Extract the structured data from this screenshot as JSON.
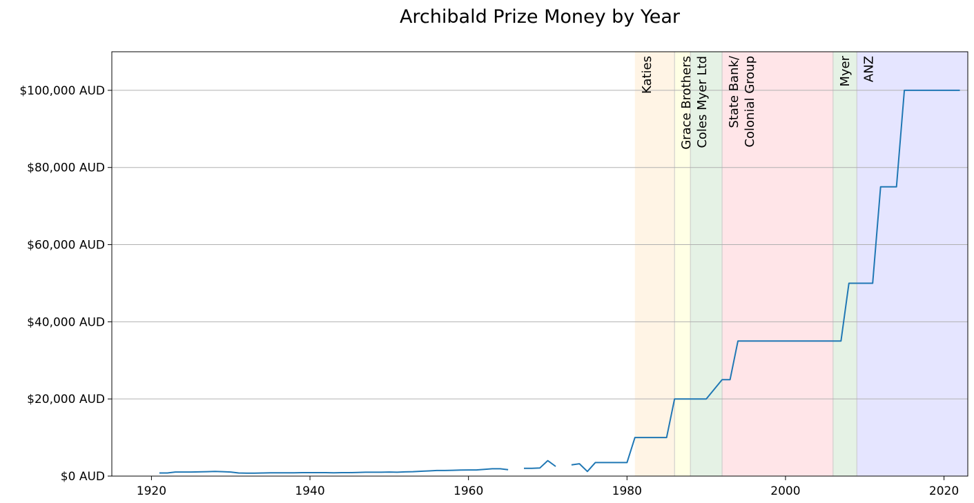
{
  "chart_data": {
    "type": "line",
    "title": "Archibald Prize Money by Year",
    "xlabel": "",
    "ylabel": "",
    "xlim": [
      1915,
      2023
    ],
    "ylim": [
      0,
      110000
    ],
    "grid": "horizontal",
    "x_ticks": [
      1920,
      1940,
      1960,
      1980,
      2000,
      2020
    ],
    "y_ticks": [
      {
        "value": 0,
        "label": "$0 AUD"
      },
      {
        "value": 20000,
        "label": "$20,000 AUD"
      },
      {
        "value": 40000,
        "label": "$40,000 AUD"
      },
      {
        "value": 60000,
        "label": "$60,000 AUD"
      },
      {
        "value": 80000,
        "label": "$80,000 AUD"
      },
      {
        "value": 100000,
        "label": "$100,000 AUD"
      }
    ],
    "sponsor_bands": [
      {
        "lines": [
          "Katies"
        ],
        "start": 1981,
        "end": 1986,
        "color": "#fff4e5"
      },
      {
        "lines": [
          "Grace Brothers"
        ],
        "start": 1986,
        "end": 1988,
        "color": "#ffffe5"
      },
      {
        "lines": [
          "Coles Myer Ltd"
        ],
        "start": 1988,
        "end": 1992,
        "color": "#e5f2e5"
      },
      {
        "lines": [
          "State Bank/",
          "Colonial Group"
        ],
        "start": 1992,
        "end": 2006,
        "color": "#ffe5e8"
      },
      {
        "lines": [
          "Myer"
        ],
        "start": 2006,
        "end": 2009,
        "color": "#e5f2e5"
      },
      {
        "lines": [
          "ANZ"
        ],
        "start": 2009,
        "end": 2023,
        "color": "#e5e5ff"
      }
    ],
    "series": [
      {
        "color": "#1f77b4",
        "x": [
          1921,
          1922,
          1923,
          1924,
          1925,
          1926,
          1927,
          1928,
          1929,
          1930,
          1931,
          1932,
          1933,
          1934,
          1935,
          1936,
          1937,
          1938,
          1939,
          1940,
          1941,
          1942,
          1943,
          1944,
          1945,
          1946,
          1947,
          1948,
          1949,
          1950,
          1951,
          1952,
          1953,
          1954,
          1955,
          1956,
          1957,
          1958,
          1959,
          1960,
          1961,
          1962,
          1963,
          1964,
          1965,
          1966,
          1967,
          1968,
          1969,
          1970,
          1971,
          1972,
          1973,
          1974,
          1975,
          1976,
          1977,
          1978,
          1979,
          1980,
          1981,
          1982,
          1983,
          1984,
          1985,
          1986,
          1987,
          1988,
          1989,
          1990,
          1991,
          1992,
          1993,
          1994,
          1995,
          1996,
          1997,
          1998,
          1999,
          2000,
          2001,
          2002,
          2003,
          2004,
          2005,
          2006,
          2007,
          2008,
          2009,
          2010,
          2011,
          2012,
          2013,
          2014,
          2015,
          2016,
          2017,
          2018,
          2019,
          2020,
          2021,
          2022
        ],
        "y": [
          800,
          800,
          1050,
          1050,
          1050,
          1100,
          1150,
          1200,
          1150,
          1050,
          800,
          750,
          750,
          800,
          850,
          850,
          850,
          850,
          900,
          900,
          900,
          900,
          850,
          900,
          900,
          950,
          1000,
          1000,
          1000,
          1050,
          1000,
          1100,
          1150,
          1250,
          1350,
          1450,
          1450,
          1500,
          1550,
          1600,
          1600,
          1750,
          1900,
          1900,
          1650,
          null,
          2000,
          2000,
          2100,
          4000,
          2500,
          null,
          2900,
          3200,
          1200,
          3500,
          3500,
          3500,
          3500,
          3500,
          10000,
          10000,
          10000,
          10000,
          10000,
          20000,
          20000,
          20000,
          20000,
          20000,
          22500,
          25000,
          25000,
          35000,
          35000,
          35000,
          35000,
          35000,
          35000,
          35000,
          35000,
          35000,
          35000,
          35000,
          35000,
          35000,
          35000,
          50000,
          50000,
          50000,
          50000,
          75000,
          75000,
          75000,
          100000,
          100000,
          100000,
          100000,
          100000,
          100000,
          100000,
          100000
        ]
      }
    ]
  }
}
